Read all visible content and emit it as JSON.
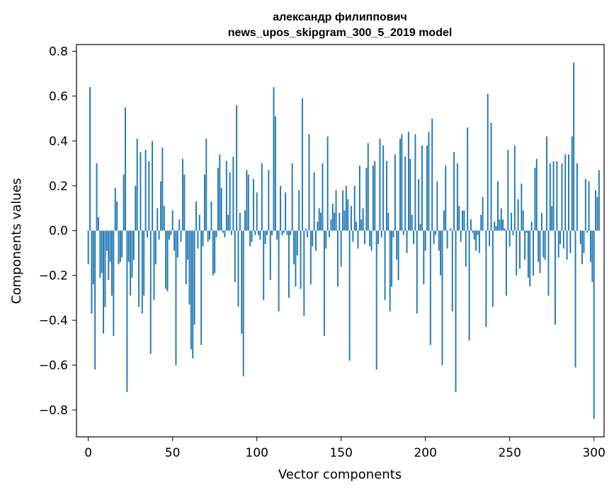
{
  "chart_data": {
    "type": "bar",
    "title_line1": "александр филиппович",
    "title_line2": "news_upos_skipgram_300_5_2019 model",
    "xlabel": "Vector components",
    "ylabel": "Components values",
    "xlim": [
      -7,
      306
    ],
    "ylim": [
      -0.92,
      0.83
    ],
    "xticks": [
      0,
      50,
      100,
      150,
      200,
      250,
      300
    ],
    "yticks": [
      -0.8,
      -0.6,
      -0.4,
      -0.2,
      0.0,
      0.2,
      0.4,
      0.6,
      0.8
    ],
    "ytick_labels": [
      "−0.8",
      "−0.6",
      "−0.4",
      "−0.2",
      "0.0",
      "0.2",
      "0.4",
      "0.6",
      "0.8"
    ],
    "xtick_labels": [
      "0",
      "50",
      "100",
      "150",
      "200",
      "250",
      "300"
    ],
    "bar_color": "#1f77b4",
    "values": [
      -0.15,
      0.64,
      -0.37,
      -0.24,
      -0.62,
      0.3,
      0.06,
      -0.21,
      -0.19,
      -0.46,
      -0.34,
      -0.09,
      -0.22,
      -0.14,
      -0.29,
      -0.47,
      0.19,
      0.13,
      -0.15,
      -0.14,
      -0.12,
      0.25,
      0.55,
      -0.72,
      -0.14,
      -0.29,
      -0.21,
      -0.13,
      0.2,
      0.41,
      -0.34,
      0.35,
      -0.37,
      -0.29,
      0.36,
      -0.03,
      0.31,
      -0.55,
      0.4,
      -0.31,
      -0.15,
      0.1,
      -0.04,
      0.22,
      0.37,
      0.11,
      -0.26,
      -0.27,
      -0.04,
      -0.02,
      0.09,
      -0.09,
      -0.6,
      -0.12,
      0.05,
      -0.05,
      0.32,
      0.25,
      -0.24,
      -0.13,
      -0.33,
      -0.53,
      -0.57,
      -0.42,
      0.13,
      -0.08,
      0.07,
      -0.51,
      -0.07,
      0.25,
      0.41,
      -0.05,
      -0.04,
      0.13,
      -0.2,
      -0.19,
      -0.03,
      0.28,
      0.34,
      0.19,
      -0.01,
      -0.03,
      0.31,
      0.07,
      0.26,
      -0.02,
      0.33,
      -0.23,
      0.56,
      -0.34,
      0.08,
      -0.46,
      -0.65,
      0.09,
      0.27,
      0.25,
      -0.07,
      -0.05,
      0.23,
      -0.02,
      0.17,
      -0.02,
      -0.04,
      0.3,
      -0.31,
      -0.06,
      -0.02,
      0.27,
      -0.22,
      -0.02,
      0.64,
      0.51,
      -0.04,
      -0.36,
      0.2,
      -0.02,
      -0.01,
      0.17,
      -0.02,
      -0.3,
      -0.02,
      0.3,
      -0.15,
      -0.25,
      -0.11,
      0.18,
      -0.26,
      0.59,
      -0.38,
      0.01,
      -0.03,
      0.43,
      -0.24,
      -0.07,
      0.26,
      -0.09,
      0.04,
      0.1,
      0.08,
      0.3,
      -0.47,
      -0.08,
      0.42,
      -0.03,
      0.05,
      0.12,
      0.08,
      0.18,
      -0.25,
      0.08,
      -0.16,
      0.18,
      0.09,
      0.2,
      0.14,
      -0.58,
      0.11,
      -0.05,
      0.2,
      0.04,
      -0.08,
      0.29,
      0.05,
      0.1,
      -0.06,
      0.28,
      0.39,
      -0.07,
      -0.09,
      0.29,
      0.31,
      -0.62,
      -0.06,
      0.41,
      -0.03,
      0.38,
      -0.31,
      0.31,
      0.08,
      -0.36,
      -0.25,
      -0.03,
      0.34,
      -0.13,
      -0.22,
      0.41,
      0.43,
      -0.02,
      0.33,
      -0.1,
      0.44,
      0.32,
      0.07,
      -0.06,
      0.43,
      -0.37,
      0.23,
      0.03,
      0.38,
      -0.24,
      -0.09,
      0.38,
      0.44,
      -0.51,
      0.5,
      -0.06,
      -0.02,
      0.22,
      -0.09,
      -0.2,
      -0.6,
      0.09,
      0.29,
      -0.08,
      0.0,
      0.01,
      -0.36,
      0.35,
      -0.72,
      0.3,
      0.11,
      -0.05,
      0.09,
      0.09,
      -0.16,
      0.46,
      -0.49,
      0.05,
      -0.01,
      -0.04,
      -0.09,
      -0.02,
      -0.1,
      0.07,
      0.15,
      0.0,
      -0.43,
      0.61,
      -0.07,
      0.48,
      -0.34,
      0.04,
      0.02,
      0.22,
      0.05,
      0.1,
      0.05,
      0.01,
      -0.29,
      0.36,
      -0.07,
      0.08,
      -0.02,
      0.38,
      -0.2,
      0.14,
      -0.17,
      0.21,
      0.09,
      -0.13,
      -0.01,
      -0.21,
      -0.25,
      0.04,
      -0.2,
      0.28,
      0.32,
      -0.14,
      -0.19,
      0.08,
      -0.12,
      -0.13,
      0.42,
      -0.29,
      0.3,
      0.11,
      0.31,
      -0.42,
      0.31,
      -0.12,
      -0.06,
      0.3,
      -0.08,
      0.34,
      -0.13,
      0.34,
      -0.1,
      0.42,
      0.75,
      -0.61,
      0.3,
      0.0,
      -0.06,
      -0.15,
      -0.1,
      0.23,
      -0.01,
      0.22,
      -0.14,
      -0.23,
      -0.84,
      0.18,
      0.15,
      0.27
    ]
  }
}
